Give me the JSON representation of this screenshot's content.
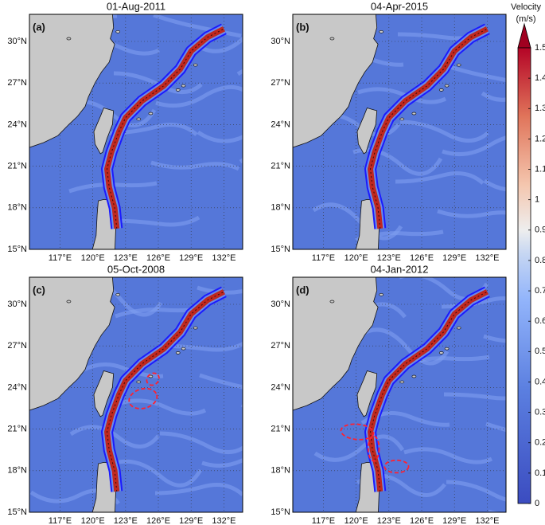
{
  "panels": [
    {
      "label": "(a)",
      "date": "01-Aug-2011"
    },
    {
      "label": "(b)",
      "date": "04-Apr-2015"
    },
    {
      "label": "(c)",
      "date": "05-Oct-2008"
    },
    {
      "label": "(d)",
      "date": "04-Jan-2012"
    }
  ],
  "lon_labels": [
    "117°E",
    "120°E",
    "123°E",
    "126°E",
    "129°E",
    "132°E"
  ],
  "lat_labels": [
    "15°N",
    "18°N",
    "21°N",
    "24°N",
    "27°N",
    "30°N"
  ],
  "colorbar": {
    "title": "Velocity",
    "unit": "(m/s)",
    "lim": [
      0,
      1.5
    ],
    "ticks": [
      0,
      0.1,
      0.2,
      0.3,
      0.4,
      0.5,
      0.6,
      0.7,
      0.8,
      0.9,
      1,
      1.1,
      1.2,
      1.3,
      1.4,
      1.5
    ]
  }
}
